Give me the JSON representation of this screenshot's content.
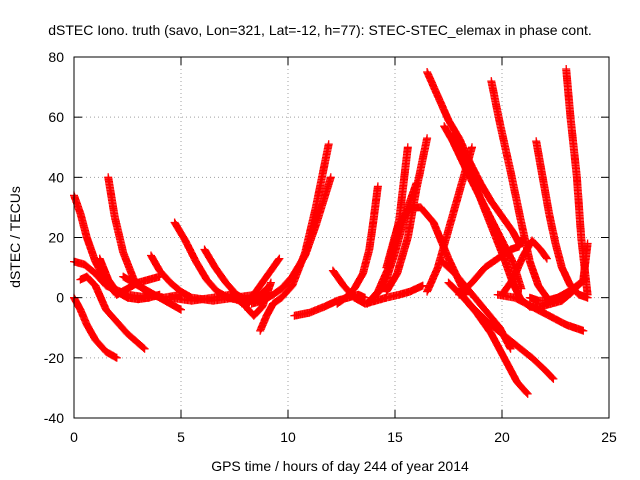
{
  "chart_data": {
    "type": "scatter",
    "title": "dSTEC Iono. truth (savo, Lon=321, Lat=-12, h=77): STEC-STEC_elemax in phase cont.",
    "xlabel": "GPS time / hours of day 244 of year 2014",
    "ylabel": "dSTEC  / TECUs",
    "xlim": [
      0,
      25
    ],
    "ylim": [
      -40,
      80
    ],
    "xticks": [
      0,
      5,
      10,
      15,
      20,
      25
    ],
    "yticks": [
      -40,
      -20,
      0,
      20,
      40,
      60,
      80
    ],
    "grid": true,
    "marker": "+",
    "color": "#ff0000",
    "series": [
      {
        "x": [
          0.0,
          0.3,
          0.6,
          1.0,
          1.5,
          2.0
        ],
        "y": [
          34,
          28,
          20,
          12,
          5,
          1
        ]
      },
      {
        "x": [
          0.0,
          0.3,
          0.6,
          1.0,
          1.5,
          2.0
        ],
        "y": [
          0,
          -4,
          -9,
          -14,
          -18,
          -20
        ]
      },
      {
        "x": [
          0.0,
          0.5,
          1.0,
          1.5,
          2.5,
          3.5
        ],
        "y": [
          12,
          11,
          8,
          4,
          1,
          0
        ]
      },
      {
        "x": [
          0.3,
          0.6,
          1.0,
          1.5,
          2.5,
          3.3
        ],
        "y": [
          6,
          7,
          4,
          -4,
          -12,
          -17
        ]
      },
      {
        "x": [
          1.2,
          1.6,
          2.0,
          2.5,
          3.0,
          3.5,
          4.0
        ],
        "y": [
          13,
          6,
          2,
          0,
          -0.5,
          0,
          1
        ]
      },
      {
        "x": [
          1.6,
          1.9,
          2.3,
          2.8,
          3.5,
          4.2,
          5.0
        ],
        "y": [
          40,
          27,
          15,
          6,
          1,
          0,
          1
        ]
      },
      {
        "x": [
          2.0,
          2.5,
          3.0,
          3.5,
          4.0
        ],
        "y": [
          1,
          3,
          5,
          6,
          7
        ]
      },
      {
        "x": [
          3.6,
          4.0,
          4.5,
          5.0,
          5.5,
          6.5,
          7.5,
          8.5
        ],
        "y": [
          14,
          9,
          5,
          2,
          0,
          -1,
          0,
          1
        ]
      },
      {
        "x": [
          2.3,
          3.0,
          3.5,
          4.0,
          4.5,
          5.0
        ],
        "y": [
          7,
          4,
          2,
          0,
          -2,
          -4
        ]
      },
      {
        "x": [
          4.7,
          5.2,
          5.7,
          6.2,
          6.7,
          7.2,
          7.8,
          8.5
        ],
        "y": [
          25,
          19,
          12,
          6,
          2,
          0,
          -1,
          0
        ]
      },
      {
        "x": [
          6.1,
          6.6,
          7.1,
          7.6,
          8.1,
          8.6,
          9.0
        ],
        "y": [
          16,
          10,
          5,
          1,
          -1,
          0,
          3
        ]
      },
      {
        "x": [
          4.5,
          5.5,
          6.5,
          7.3,
          7.9,
          8.4,
          8.8,
          9.2
        ],
        "y": [
          0,
          -1,
          0,
          1,
          -2,
          -6,
          -3,
          5
        ]
      },
      {
        "x": [
          8.7,
          9.0,
          9.3,
          9.7,
          10.2,
          10.8,
          11.3,
          11.9
        ],
        "y": [
          -11,
          -6,
          -2,
          0,
          4,
          15,
          30,
          51
        ]
      },
      {
        "x": [
          8.0,
          8.4,
          8.9,
          9.3,
          9.6
        ],
        "y": [
          -3,
          1,
          6,
          10,
          13
        ]
      },
      {
        "x": [
          8.3,
          8.8,
          9.3,
          9.7,
          10.2,
          10.8,
          11.3,
          12.0
        ],
        "y": [
          -2,
          -1,
          1,
          3,
          7,
          14,
          24,
          40
        ]
      },
      {
        "x": [
          10.3,
          11.0,
          11.7,
          12.3,
          12.8,
          13.3,
          13.6
        ],
        "y": [
          -6,
          -5,
          -3,
          -1,
          0,
          1,
          0
        ]
      },
      {
        "x": [
          12.1,
          12.6,
          13.1,
          13.6,
          14.1,
          14.6,
          15.2,
          15.7,
          16.3
        ],
        "y": [
          9,
          4,
          0,
          -2,
          -1,
          0,
          1,
          2,
          4
        ]
      },
      {
        "x": [
          12.3,
          12.7,
          13.1,
          13.5,
          13.8,
          14.0,
          14.2
        ],
        "y": [
          -2,
          0,
          3,
          8,
          16,
          26,
          37
        ]
      },
      {
        "x": [
          13.7,
          14.2,
          14.7,
          15.2,
          15.6
        ],
        "y": [
          -2,
          2,
          10,
          26,
          50
        ]
      },
      {
        "x": [
          14.0,
          14.5,
          15.0,
          15.5,
          16.0
        ],
        "y": [
          0,
          4,
          15,
          28,
          38
        ]
      },
      {
        "x": [
          14.6,
          15.1,
          15.6,
          16.0,
          16.5
        ],
        "y": [
          2,
          8,
          20,
          36,
          53
        ]
      },
      {
        "x": [
          14.6,
          15.1,
          15.7,
          16.2,
          16.8,
          17.5,
          18.3
        ],
        "y": [
          10,
          23,
          30,
          30,
          25,
          13,
          1
        ]
      },
      {
        "x": [
          16.5,
          17.0,
          17.4,
          17.8,
          18.2,
          18.6
        ],
        "y": [
          2,
          10,
          20,
          30,
          40,
          50
        ]
      },
      {
        "x": [
          16.5,
          17.0,
          17.5,
          18.0,
          18.5,
          19.0,
          19.5,
          20.0,
          20.5,
          20.8
        ],
        "y": [
          75,
          67,
          59,
          53,
          45,
          38,
          32,
          27,
          22,
          18
        ]
      },
      {
        "x": [
          17.3,
          17.7,
          18.1,
          18.5,
          19.0,
          19.5,
          20.0,
          20.5,
          20.9
        ],
        "y": [
          57,
          52,
          46,
          40,
          33,
          26,
          19,
          12,
          3
        ]
      },
      {
        "x": [
          17.7,
          18.1,
          18.6,
          19.1,
          19.6,
          20.1,
          20.5,
          20.9
        ],
        "y": [
          54,
          48,
          40,
          31,
          22,
          13,
          5,
          -1
        ]
      },
      {
        "x": [
          19.5,
          19.9,
          20.4,
          20.9,
          21.3,
          21.7,
          22.2,
          22.6
        ],
        "y": [
          72,
          58,
          42,
          25,
          12,
          4,
          -1,
          0
        ]
      },
      {
        "x": [
          18.0,
          18.6,
          19.2,
          19.8,
          20.4,
          20.8,
          21.0
        ],
        "y": [
          1,
          5,
          10,
          13,
          16,
          17,
          20
        ]
      },
      {
        "x": [
          20.0,
          20.5,
          21.0,
          21.4,
          21.8,
          22.1
        ],
        "y": [
          1,
          6,
          14,
          19,
          16,
          13
        ]
      },
      {
        "x": [
          17.2,
          17.8,
          18.5,
          19.2,
          19.9,
          20.4
        ],
        "y": [
          12,
          8,
          2,
          -4,
          -10,
          -17
        ]
      },
      {
        "x": [
          17.5,
          18.2,
          18.8,
          19.5,
          20.1,
          20.7,
          21.2
        ],
        "y": [
          5,
          0,
          -5,
          -12,
          -20,
          -28,
          -32
        ]
      },
      {
        "x": [
          18.0,
          18.6,
          19.3,
          20.0,
          20.7,
          21.4,
          22.0,
          22.4
        ],
        "y": [
          2,
          -3,
          -8,
          -12,
          -16,
          -20,
          -24,
          -27
        ]
      },
      {
        "x": [
          21.6,
          21.9,
          22.2,
          22.5,
          22.8,
          23.2,
          23.6,
          24.0
        ],
        "y": [
          52,
          40,
          28,
          18,
          10,
          4,
          1,
          0
        ]
      },
      {
        "x": [
          23.0,
          23.2,
          23.5,
          23.7,
          24.0
        ],
        "y": [
          76,
          60,
          40,
          20,
          1
        ]
      },
      {
        "x": [
          20.8,
          21.3,
          21.8,
          22.3,
          22.8,
          23.3,
          23.8,
          24.0
        ],
        "y": [
          0,
          -3,
          -3,
          -2,
          -1,
          2,
          6,
          18
        ]
      },
      {
        "x": [
          19.8,
          20.6,
          21.4,
          22.2,
          23.0,
          23.8
        ],
        "y": [
          1,
          0,
          -3,
          -6,
          -9,
          -11
        ]
      },
      {
        "x": [
          21.3,
          21.7,
          22.1,
          22.6,
          23.1,
          23.5,
          23.9
        ],
        "y": [
          0,
          -1,
          -1,
          0,
          2,
          4,
          6
        ]
      }
    ]
  }
}
